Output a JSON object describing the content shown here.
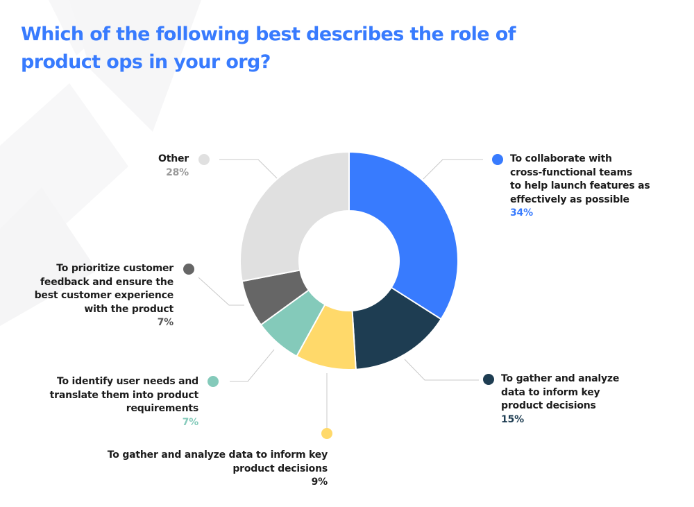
{
  "title": "Which of the following best describes the role of product ops in your org?",
  "title_lines": [
    "Which of the following best describes the role of",
    "product ops in your org?"
  ],
  "colors": {
    "title": "#387BFE",
    "collaborate": "#387BFE",
    "gather_dark": "#1E3D52",
    "gather_yellow": "#FFD96A",
    "identify": "#84CABA",
    "prioritize": "#666666",
    "other": "#E0E0E0"
  },
  "legend": [
    {
      "id": "collaborate",
      "label": "To collaborate with cross-functional teams to help launch features as effectively as possible",
      "lines": [
        "To collaborate with",
        "cross-functional teams",
        "to help launch features as",
        "effectively as possible"
      ],
      "percent": "34%",
      "color": "#387BFE",
      "pct_color": "#387BFE"
    },
    {
      "id": "gather-dark",
      "label": "To gather and analyze data to inform key product decisions",
      "lines": [
        "To gather and analyze",
        "data to inform key",
        "product decisions"
      ],
      "percent": "15%",
      "color": "#1E3D52",
      "pct_color": "#1E3D52"
    },
    {
      "id": "gather-yellow",
      "label": "To gather and analyze data to inform key product decisions",
      "lines": [
        "To gather and analyze data to inform key",
        "product decisions"
      ],
      "percent": "9%",
      "color": "#FFD96A",
      "pct_color": "#1c1c1c"
    },
    {
      "id": "identify",
      "label": "To identify user needs and translate them into product requirements",
      "lines": [
        "To identify user needs and",
        "translate them into product",
        "requirements"
      ],
      "percent": "7%",
      "color": "#84CABA",
      "pct_color": "#84CABA"
    },
    {
      "id": "prioritize",
      "label": "To prioritize customer feedback and ensure the best customer experience with the product",
      "lines": [
        "To prioritize customer",
        "feedback and ensure the",
        "best customer experience",
        "with the product"
      ],
      "percent": "7%",
      "color": "#666666",
      "pct_color": "#555555"
    },
    {
      "id": "other",
      "label": "Other",
      "lines": [
        "Other"
      ],
      "percent": "28%",
      "color": "#E0E0E0",
      "pct_color": "#9a9a9a"
    }
  ],
  "chart_data": {
    "type": "pie",
    "subtype": "donut",
    "title": "Which of the following best describes the role of product ops in your org?",
    "categories": [
      "To collaborate with cross-functional teams to help launch features as effectively as possible",
      "To gather and analyze data to inform key product decisions",
      "To gather and analyze data to inform key product decisions",
      "To identify user needs and translate them into product requirements",
      "To prioritize customer feedback and ensure the best customer experience with the product",
      "Other"
    ],
    "values": [
      34,
      15,
      9,
      7,
      7,
      28
    ],
    "unit": "%",
    "colors": [
      "#387BFE",
      "#1E3D52",
      "#FFD96A",
      "#84CABA",
      "#666666",
      "#E0E0E0"
    ],
    "start_angle": "12 o'clock",
    "direction": "clockwise",
    "legend_position": "callout labels around chart"
  }
}
